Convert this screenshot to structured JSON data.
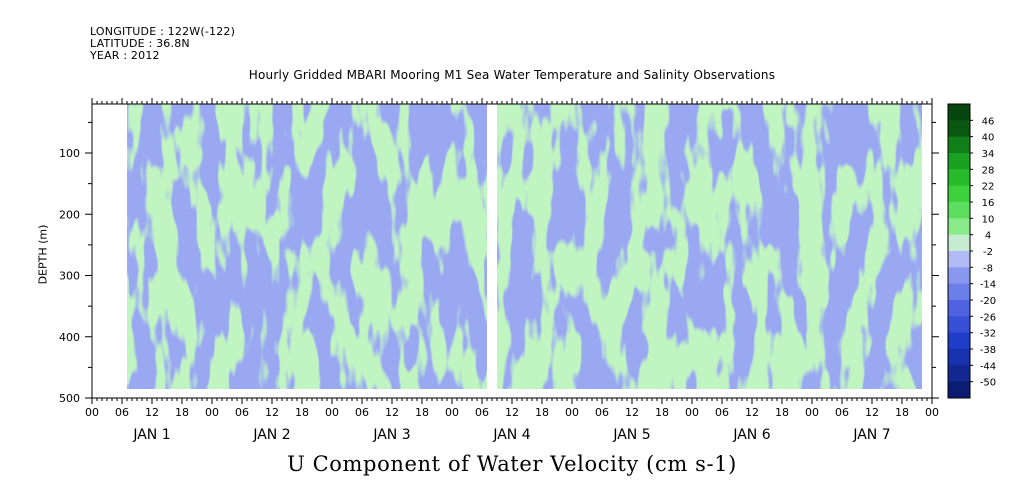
{
  "header": {
    "longitude": "LONGITUDE : 122W(-122)",
    "latitude": "LATITUDE : 36.8N",
    "year": "YEAR : 2012"
  },
  "chart_data": {
    "type": "heatmap",
    "title": "Hourly Gridded MBARI Mooring M1 Sea Water Temperature and Salinity Observations",
    "xlabel": "U Component of Water Velocity (cm s-1)",
    "ylabel": "DEPTH (m)",
    "x_hour_ticks": [
      "00",
      "06",
      "12",
      "18",
      "00",
      "06",
      "12",
      "18",
      "00",
      "06",
      "12",
      "18",
      "00",
      "06",
      "12",
      "18",
      "00",
      "06",
      "12",
      "18",
      "00",
      "06",
      "12",
      "18",
      "00",
      "06",
      "12",
      "18",
      "00"
    ],
    "x_day_labels": [
      "JAN 1",
      "JAN 2",
      "JAN 3",
      "JAN 4",
      "JAN 5",
      "JAN 6",
      "JAN 7"
    ],
    "xlim_hours": [
      0,
      168
    ],
    "data_range_hours": [
      7,
      166
    ],
    "gap_hours": [
      79,
      81
    ],
    "y_ticks": [
      100,
      200,
      300,
      400,
      500
    ],
    "y_tick_labels": [
      "100",
      "200",
      "300",
      "400",
      "500"
    ],
    "ylim": [
      20,
      500
    ],
    "depth_range": [
      20,
      485
    ],
    "colorbar": {
      "levels": [
        46,
        40,
        34,
        28,
        22,
        16,
        10,
        4,
        -2,
        -8,
        -14,
        -20,
        -26,
        -32,
        -38,
        -44,
        -50
      ],
      "labels": [
        "46",
        "40",
        "34",
        "28",
        "22",
        "16",
        "10",
        "4",
        "-2",
        "-8",
        "-14",
        "-20",
        "-26",
        "-32",
        "-38",
        "-44",
        "-50"
      ],
      "range": [
        -50,
        50
      ],
      "colors": [
        "#0a1a6e",
        "#1633b8",
        "#3355d8",
        "#6b7fe6",
        "#9ba8f0",
        "#b9c0f5",
        "#c9f5c9",
        "#8eec8e",
        "#4ee04e",
        "#22c022",
        "#12941a",
        "#0a6a12",
        "#063f0c"
      ]
    },
    "field_note_colors": {
      "negative": "#9aa8f2",
      "positive": "#86ec86"
    }
  }
}
